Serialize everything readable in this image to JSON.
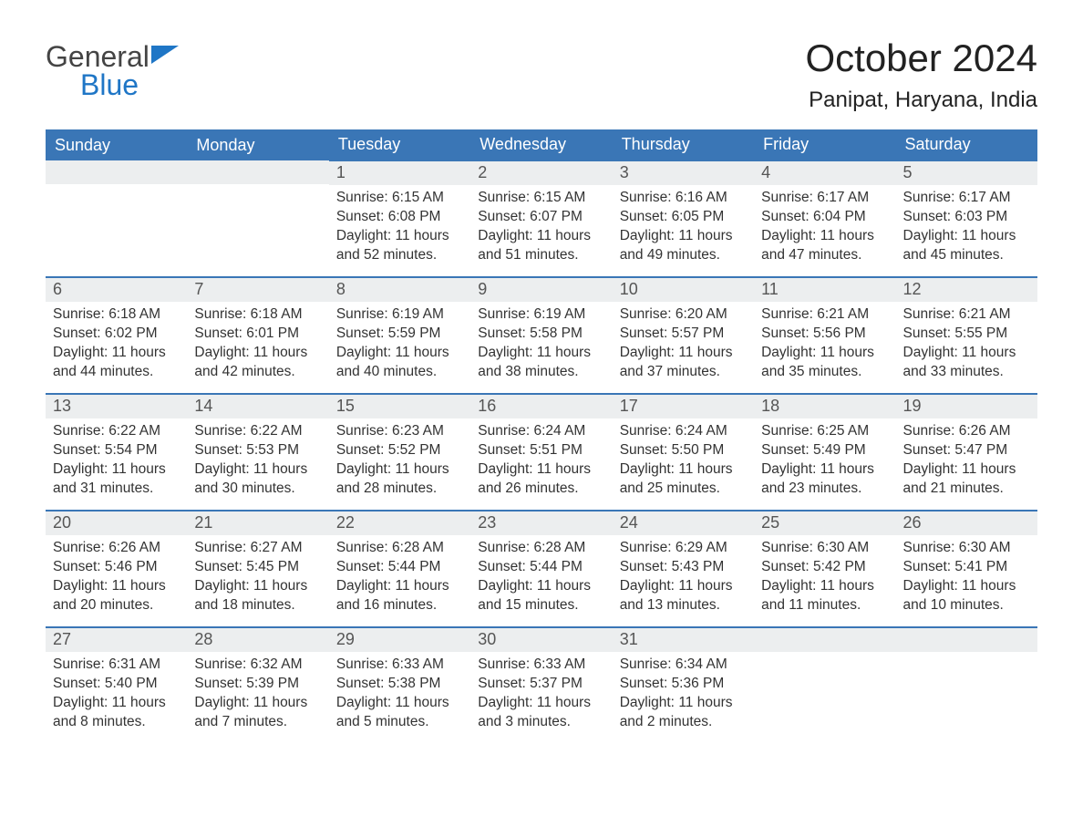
{
  "colors": {
    "header_bg": "#3a76b6",
    "header_text": "#ffffff",
    "cell_top_border": "#3a76b6",
    "daynum_bg": "#eceeef",
    "text": "#333333",
    "logo_blue": "#1f76c6",
    "background": "#ffffff"
  },
  "typography": {
    "month_title_fontsize": 42,
    "location_fontsize": 24,
    "header_fontsize": 18,
    "daynum_fontsize": 18,
    "body_fontsize": 15.5,
    "font_family": "Arial"
  },
  "logo": {
    "line1": "General",
    "line2": "Blue"
  },
  "title": "October 2024",
  "location": "Panipat, Haryana, India",
  "weekdays": [
    "Sunday",
    "Monday",
    "Tuesday",
    "Wednesday",
    "Thursday",
    "Friday",
    "Saturday"
  ],
  "labels": {
    "sunrise": "Sunrise:",
    "sunset": "Sunset:",
    "daylight": "Daylight:"
  },
  "leading_blanks": 2,
  "days": [
    {
      "n": 1,
      "sunrise": "6:15 AM",
      "sunset": "6:08 PM",
      "daylight": "11 hours and 52 minutes."
    },
    {
      "n": 2,
      "sunrise": "6:15 AM",
      "sunset": "6:07 PM",
      "daylight": "11 hours and 51 minutes."
    },
    {
      "n": 3,
      "sunrise": "6:16 AM",
      "sunset": "6:05 PM",
      "daylight": "11 hours and 49 minutes."
    },
    {
      "n": 4,
      "sunrise": "6:17 AM",
      "sunset": "6:04 PM",
      "daylight": "11 hours and 47 minutes."
    },
    {
      "n": 5,
      "sunrise": "6:17 AM",
      "sunset": "6:03 PM",
      "daylight": "11 hours and 45 minutes."
    },
    {
      "n": 6,
      "sunrise": "6:18 AM",
      "sunset": "6:02 PM",
      "daylight": "11 hours and 44 minutes."
    },
    {
      "n": 7,
      "sunrise": "6:18 AM",
      "sunset": "6:01 PM",
      "daylight": "11 hours and 42 minutes."
    },
    {
      "n": 8,
      "sunrise": "6:19 AM",
      "sunset": "5:59 PM",
      "daylight": "11 hours and 40 minutes."
    },
    {
      "n": 9,
      "sunrise": "6:19 AM",
      "sunset": "5:58 PM",
      "daylight": "11 hours and 38 minutes."
    },
    {
      "n": 10,
      "sunrise": "6:20 AM",
      "sunset": "5:57 PM",
      "daylight": "11 hours and 37 minutes."
    },
    {
      "n": 11,
      "sunrise": "6:21 AM",
      "sunset": "5:56 PM",
      "daylight": "11 hours and 35 minutes."
    },
    {
      "n": 12,
      "sunrise": "6:21 AM",
      "sunset": "5:55 PM",
      "daylight": "11 hours and 33 minutes."
    },
    {
      "n": 13,
      "sunrise": "6:22 AM",
      "sunset": "5:54 PM",
      "daylight": "11 hours and 31 minutes."
    },
    {
      "n": 14,
      "sunrise": "6:22 AM",
      "sunset": "5:53 PM",
      "daylight": "11 hours and 30 minutes."
    },
    {
      "n": 15,
      "sunrise": "6:23 AM",
      "sunset": "5:52 PM",
      "daylight": "11 hours and 28 minutes."
    },
    {
      "n": 16,
      "sunrise": "6:24 AM",
      "sunset": "5:51 PM",
      "daylight": "11 hours and 26 minutes."
    },
    {
      "n": 17,
      "sunrise": "6:24 AM",
      "sunset": "5:50 PM",
      "daylight": "11 hours and 25 minutes."
    },
    {
      "n": 18,
      "sunrise": "6:25 AM",
      "sunset": "5:49 PM",
      "daylight": "11 hours and 23 minutes."
    },
    {
      "n": 19,
      "sunrise": "6:26 AM",
      "sunset": "5:47 PM",
      "daylight": "11 hours and 21 minutes."
    },
    {
      "n": 20,
      "sunrise": "6:26 AM",
      "sunset": "5:46 PM",
      "daylight": "11 hours and 20 minutes."
    },
    {
      "n": 21,
      "sunrise": "6:27 AM",
      "sunset": "5:45 PM",
      "daylight": "11 hours and 18 minutes."
    },
    {
      "n": 22,
      "sunrise": "6:28 AM",
      "sunset": "5:44 PM",
      "daylight": "11 hours and 16 minutes."
    },
    {
      "n": 23,
      "sunrise": "6:28 AM",
      "sunset": "5:44 PM",
      "daylight": "11 hours and 15 minutes."
    },
    {
      "n": 24,
      "sunrise": "6:29 AM",
      "sunset": "5:43 PM",
      "daylight": "11 hours and 13 minutes."
    },
    {
      "n": 25,
      "sunrise": "6:30 AM",
      "sunset": "5:42 PM",
      "daylight": "11 hours and 11 minutes."
    },
    {
      "n": 26,
      "sunrise": "6:30 AM",
      "sunset": "5:41 PM",
      "daylight": "11 hours and 10 minutes."
    },
    {
      "n": 27,
      "sunrise": "6:31 AM",
      "sunset": "5:40 PM",
      "daylight": "11 hours and 8 minutes."
    },
    {
      "n": 28,
      "sunrise": "6:32 AM",
      "sunset": "5:39 PM",
      "daylight": "11 hours and 7 minutes."
    },
    {
      "n": 29,
      "sunrise": "6:33 AM",
      "sunset": "5:38 PM",
      "daylight": "11 hours and 5 minutes."
    },
    {
      "n": 30,
      "sunrise": "6:33 AM",
      "sunset": "5:37 PM",
      "daylight": "11 hours and 3 minutes."
    },
    {
      "n": 31,
      "sunrise": "6:34 AM",
      "sunset": "5:36 PM",
      "daylight": "11 hours and 2 minutes."
    }
  ]
}
